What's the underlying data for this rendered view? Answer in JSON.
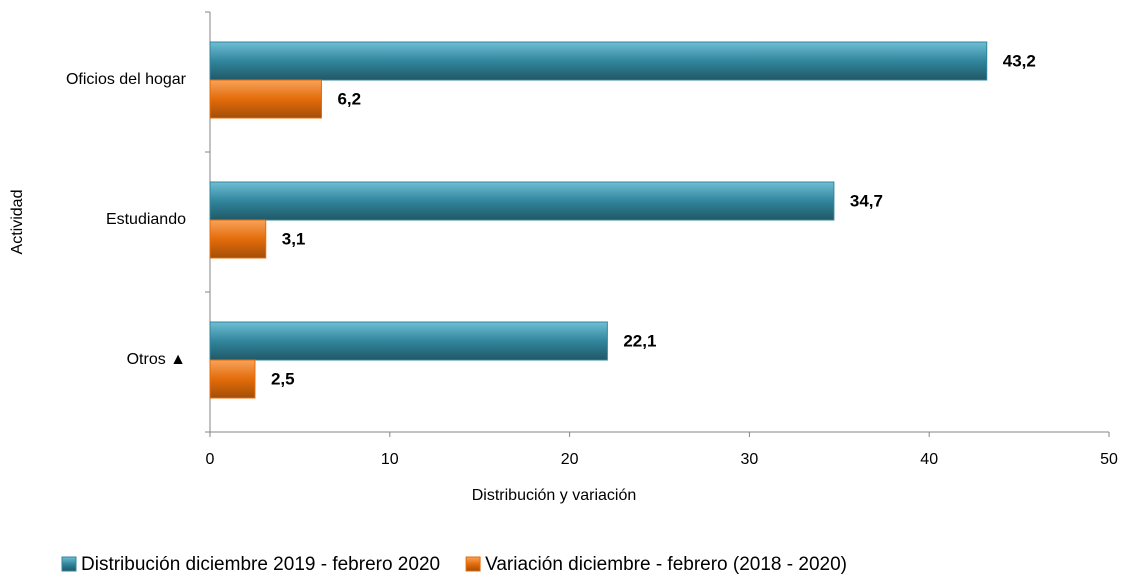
{
  "chart_data": {
    "type": "hbar",
    "x_label": "Distribución y variación",
    "y_label": "Actividad",
    "categories": [
      "Oficios del hogar",
      "Estudiando",
      "Otros ▲"
    ],
    "series": [
      {
        "name": "Distribución diciembre 2019 - febrero 2020",
        "color": "#31859c",
        "label_color": "#1f3864",
        "values": [
          43.2,
          34.7,
          22.1
        ],
        "value_labels": [
          "43,2",
          "34,7",
          "22,1"
        ]
      },
      {
        "name": "Variación diciembre - febrero (2018 - 2020)",
        "color": "#e46c0a",
        "label_color": "#e46c0a",
        "values": [
          6.2,
          3.1,
          2.5
        ],
        "value_labels": [
          "6,2",
          "3,1",
          "2,5"
        ]
      }
    ],
    "xlim": [
      0,
      50
    ],
    "xticks": [
      0,
      10,
      20,
      30,
      40,
      50
    ],
    "legend": "bottom"
  }
}
